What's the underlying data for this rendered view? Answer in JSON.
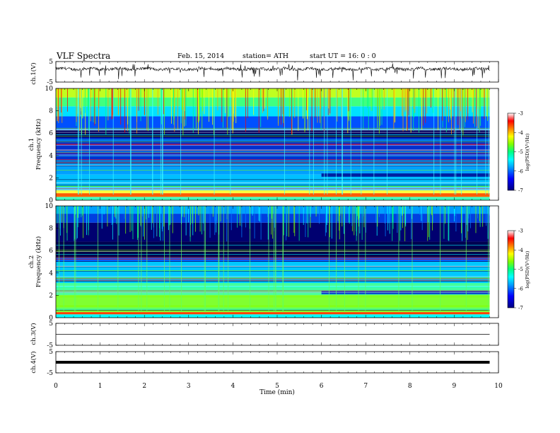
{
  "header": {
    "title": "VLF  Spectra",
    "date": "Feb. 15, 2014",
    "station": "station= ATH",
    "start": "start  UT =   16: 0  : 0"
  },
  "chart_data": [
    {
      "type": "line",
      "panel": "ch1-waveform",
      "ylabel": "ch.1(V)",
      "ylim": [
        -5,
        5
      ],
      "yticks": [
        "5",
        "-5"
      ],
      "x_range_min": [
        0,
        9.8
      ],
      "description_level": 1.4,
      "series_color": "#000000"
    },
    {
      "type": "heatmap",
      "panel": "ch1-spectrogram",
      "ylabel": "ch.1\nFrequency  (kHz)",
      "ylim": [
        0,
        10
      ],
      "yticks": [
        "0",
        "2",
        "4",
        "6",
        "8",
        "10"
      ],
      "colorbar": {
        "label": "log(PSD)(V²/Hz)",
        "range": [
          -7,
          -3
        ],
        "ticks": [
          "-3",
          "-4",
          "-5",
          "-6",
          "-7"
        ],
        "colormap": [
          "#000080",
          "#0000ff",
          "#00a0ff",
          "#00ffff",
          "#00ff80",
          "#80ff00",
          "#ffff00",
          "#ff8000",
          "#ff0000",
          "#ffffff"
        ]
      },
      "step_change_time_min": 6.0
    },
    {
      "type": "heatmap",
      "panel": "ch2-spectrogram",
      "ylabel": "ch.2\nFrequency  (kHz)",
      "ylim": [
        0,
        10
      ],
      "yticks": [
        "0",
        "2",
        "4",
        "6",
        "8",
        "10"
      ],
      "colorbar": {
        "label": "log(PSD)(V²/Hz)",
        "range": [
          -7,
          -3
        ],
        "ticks": [
          "-3",
          "-4",
          "-5",
          "-6",
          "-7"
        ]
      },
      "step_change_time_min": 6.0
    },
    {
      "type": "line",
      "panel": "ch3-waveform",
      "ylabel": "ch.3(V)",
      "ylim": [
        -5,
        5
      ],
      "yticks": [
        "5",
        "-5"
      ],
      "level": 0
    },
    {
      "type": "line",
      "panel": "ch4-waveform",
      "ylabel": "ch.4(V)",
      "ylim": [
        -5,
        5
      ],
      "yticks": [
        "5",
        "-5"
      ],
      "level": 0
    }
  ],
  "xaxis": {
    "label": "Time  (min)",
    "range": [
      0,
      10
    ],
    "ticks": [
      "0",
      "1",
      "2",
      "3",
      "4",
      "5",
      "6",
      "7",
      "8",
      "9",
      "10"
    ],
    "data_end": 9.8
  },
  "colors": {
    "background": "#ffffff",
    "frame": "#000000"
  }
}
